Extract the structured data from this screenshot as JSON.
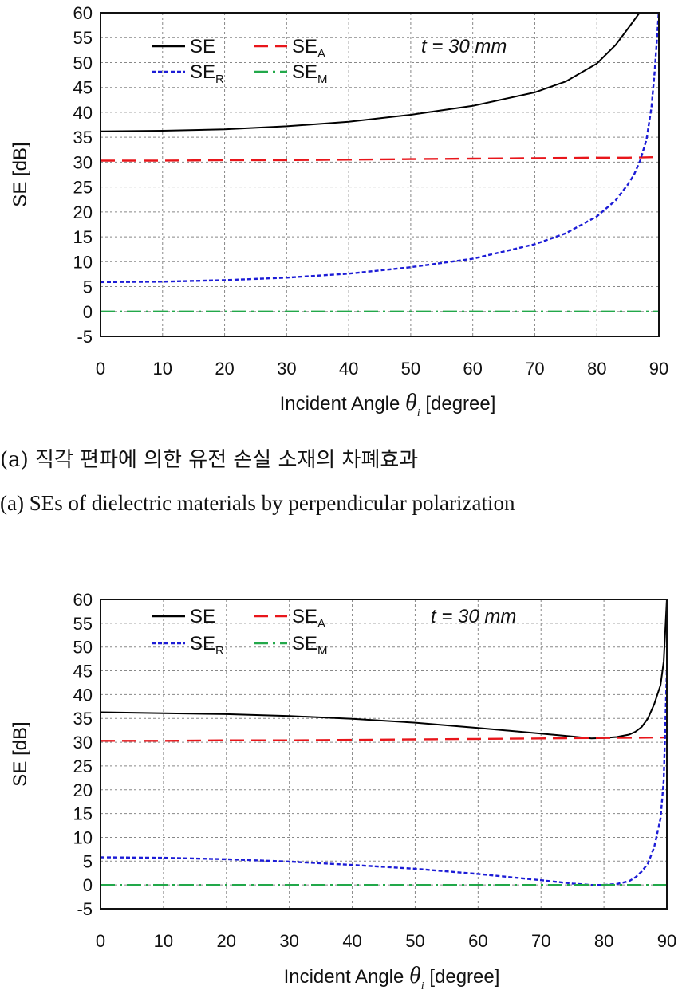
{
  "colors": {
    "SE": "#000000",
    "SE_A": "#e8161b",
    "SE_R": "#1c1cd6",
    "SE_M": "#22a84a"
  },
  "chart_data": [
    {
      "type": "line",
      "ylabel": "SE [dB]",
      "xlabel_prefix": "Incident Angle",
      "xlabel_symbol": "θ",
      "xlabel_symbol_sub": "i",
      "xlabel_suffix": "[degree]",
      "xlim": [
        0,
        90
      ],
      "ylim": [
        -5,
        60
      ],
      "xticks": [
        "0",
        "10",
        "20",
        "30",
        "40",
        "50",
        "60",
        "70",
        "80",
        "90"
      ],
      "yticks": [
        "-5",
        "0",
        "5",
        "10",
        "15",
        "20",
        "25",
        "30",
        "35",
        "40",
        "45",
        "50",
        "55",
        "60"
      ],
      "grid": true,
      "legend": "top-left",
      "annotation": "t = 30 mm",
      "series": [
        {
          "name": "SE",
          "label": "SE",
          "sub": "",
          "color": "#000000",
          "dash": "",
          "x": [
            0,
            10,
            20,
            30,
            40,
            50,
            60,
            70,
            75,
            80,
            83,
            85,
            86,
            87,
            87.5
          ],
          "y": [
            36.2,
            36.3,
            36.6,
            37.2,
            38.1,
            39.5,
            41.3,
            44.0,
            46.2,
            49.8,
            53.5,
            56.8,
            58.5,
            60.2,
            61.5
          ]
        },
        {
          "name": "SE_A",
          "label": "SE",
          "sub": "A",
          "color": "#e8161b",
          "dash": "18 9",
          "x": [
            0,
            10,
            20,
            30,
            40,
            50,
            60,
            70,
            80,
            85,
            90
          ],
          "y": [
            30.3,
            30.3,
            30.4,
            30.4,
            30.5,
            30.6,
            30.7,
            30.8,
            30.9,
            30.9,
            31.0
          ]
        },
        {
          "name": "SE_R",
          "label": "SE",
          "sub": "R",
          "color": "#1c1cd6",
          "dash": "5 3",
          "x": [
            0,
            10,
            20,
            30,
            40,
            50,
            60,
            70,
            75,
            80,
            83,
            85,
            86,
            87,
            88,
            88.8,
            89.3,
            89.7,
            90
          ],
          "y": [
            5.9,
            6.0,
            6.3,
            6.8,
            7.6,
            8.9,
            10.6,
            13.5,
            15.7,
            19.1,
            22.3,
            25.5,
            27.5,
            30.4,
            34.5,
            41.0,
            48.0,
            55.0,
            60.5
          ]
        },
        {
          "name": "SE_M",
          "label": "SE",
          "sub": "M",
          "color": "#22a84a",
          "dash": "18 6 3 6",
          "x": [
            0,
            90
          ],
          "y": [
            0,
            0
          ]
        }
      ]
    },
    {
      "type": "line",
      "ylabel": "SE [dB]",
      "xlabel_prefix": "Incident Angle",
      "xlabel_symbol": "θ",
      "xlabel_symbol_sub": "i",
      "xlabel_suffix": "[degree]",
      "xlim": [
        0,
        90
      ],
      "ylim": [
        -5,
        60
      ],
      "xticks": [
        "0",
        "10",
        "20",
        "30",
        "40",
        "50",
        "60",
        "70",
        "80",
        "90"
      ],
      "yticks": [
        "-5",
        "0",
        "5",
        "10",
        "15",
        "20",
        "25",
        "30",
        "35",
        "40",
        "45",
        "50",
        "55",
        "60"
      ],
      "grid": true,
      "legend": "top-left",
      "annotation": "t = 30 mm",
      "series": [
        {
          "name": "SE",
          "label": "SE",
          "sub": "",
          "color": "#000000",
          "dash": "",
          "x": [
            0,
            10,
            20,
            30,
            40,
            50,
            60,
            70,
            75,
            78,
            80,
            82,
            84,
            85,
            86,
            87,
            88,
            89,
            89.5,
            90
          ],
          "y": [
            36.3,
            36.1,
            35.9,
            35.5,
            34.9,
            34.1,
            33.0,
            31.8,
            31.2,
            30.8,
            30.9,
            31.1,
            31.6,
            32.2,
            33.2,
            35.0,
            38.0,
            42.0,
            47.0,
            60.0
          ]
        },
        {
          "name": "SE_A",
          "label": "SE",
          "sub": "A",
          "color": "#e8161b",
          "dash": "18 9",
          "x": [
            0,
            10,
            20,
            30,
            40,
            50,
            60,
            70,
            80,
            90
          ],
          "y": [
            30.3,
            30.3,
            30.4,
            30.4,
            30.5,
            30.6,
            30.7,
            30.8,
            30.9,
            31.0
          ]
        },
        {
          "name": "SE_R",
          "label": "SE",
          "sub": "R",
          "color": "#1c1cd6",
          "dash": "5 3",
          "x": [
            0,
            10,
            20,
            30,
            40,
            50,
            60,
            70,
            75,
            78,
            80,
            82,
            84,
            85,
            86,
            87,
            88,
            89,
            89.5,
            90
          ],
          "y": [
            5.8,
            5.7,
            5.4,
            4.9,
            4.2,
            3.4,
            2.3,
            1.0,
            0.3,
            0.0,
            0.0,
            0.2,
            0.8,
            1.6,
            2.8,
            4.5,
            8.0,
            14.0,
            22.0,
            45.0
          ]
        },
        {
          "name": "SE_M",
          "label": "SE",
          "sub": "M",
          "color": "#22a84a",
          "dash": "18 6 3 6",
          "x": [
            0,
            90
          ],
          "y": [
            0,
            0
          ]
        }
      ]
    }
  ],
  "captions": {
    "a_korean": "(a) 직각 편파에 의한 유전 손실 소재의 차폐효과",
    "a_english": "(a) SEs of dielectric materials by perpendicular polarization"
  }
}
